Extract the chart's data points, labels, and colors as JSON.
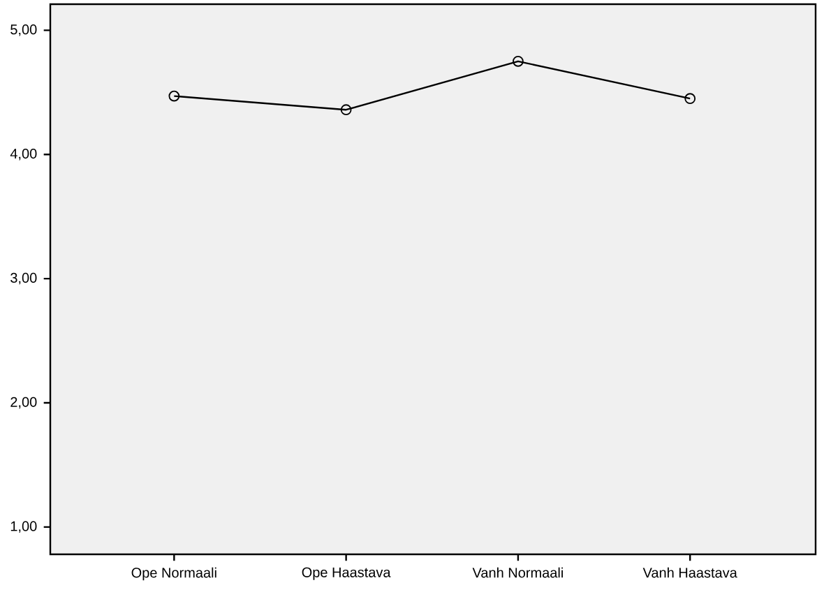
{
  "chart_data": {
    "type": "line",
    "categories": [
      "Ope Normaali",
      "Ope Haastava",
      "Vanh Normaali",
      "Vanh Haastava"
    ],
    "values": [
      4.47,
      4.36,
      4.75,
      4.45
    ],
    "color": "#000000",
    "marker": "circle",
    "line_style": "solid",
    "grid": false,
    "ylim": [
      0.78,
      5.21
    ],
    "yticks": [
      {
        "value": 1,
        "label": "1,00"
      },
      {
        "value": 2,
        "label": "2,00"
      },
      {
        "value": 3,
        "label": "3,00"
      },
      {
        "value": 4,
        "label": "4,00"
      },
      {
        "value": 5,
        "label": "5,00"
      }
    ]
  }
}
